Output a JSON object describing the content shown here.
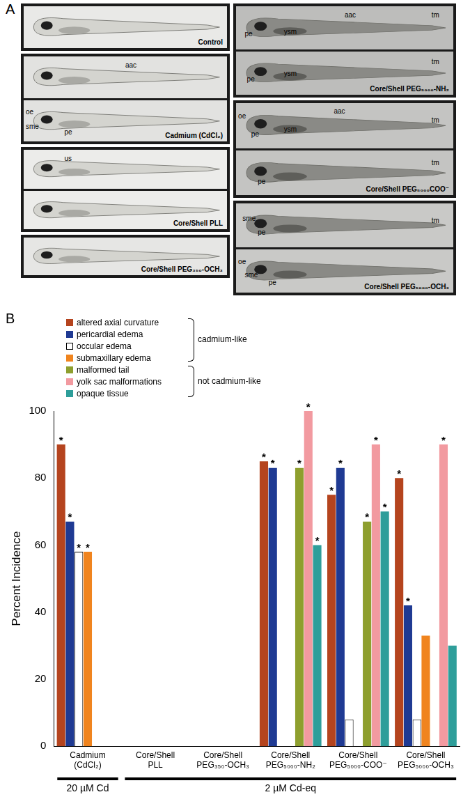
{
  "panel_a": {
    "label": "A",
    "panels": [
      {
        "label": "Control",
        "images": [
          []
        ]
      },
      {
        "label": "Cadmium (CdCl₂)",
        "images": [
          [
            "aac"
          ],
          [
            "oe",
            "sme",
            "pe"
          ]
        ]
      },
      {
        "label": "Core/Shell PLL",
        "images": [
          [
            "us"
          ],
          []
        ]
      },
      {
        "label": "Core/Shell PEG₃₅₀-OCH₃",
        "images": [
          []
        ]
      },
      {
        "label": "Core/Shell PEG₅₀₀₀-NH₂",
        "images": [
          [
            "pe",
            "aac",
            "ysm",
            "tm"
          ],
          [
            "tm",
            "pe",
            "ysm"
          ]
        ]
      },
      {
        "label": "Core/Shell PEG₅₀₀₀COO⁻",
        "images": [
          [
            "oe",
            "aac",
            "pe",
            "ysm",
            "tm"
          ],
          [
            "tm",
            "pe"
          ]
        ]
      },
      {
        "label": "Core/Shell PEG₅₀₀₀-OCH₃",
        "images": [
          [
            "sme",
            "pe",
            "tm"
          ],
          [
            "oe",
            "sme",
            "pe"
          ]
        ]
      }
    ]
  },
  "chart_data": {
    "type": "bar",
    "panel_label": "B",
    "y_label": "Percent Incidence",
    "categories": [
      [
        "Cadmium",
        "(CdCl₂)"
      ],
      [
        "Core/Shell",
        "PLL"
      ],
      [
        "Core/Shell",
        "PEG₃₅₀-OCH₃"
      ],
      [
        "Core/Shell",
        "PEG₅₀₀₀-NH₂"
      ],
      [
        "Core/Shell",
        "PEG₅₀₀₀-COO⁻"
      ],
      [
        "Core/Shell",
        "PEG₅₀₀₀-OCH₃"
      ]
    ],
    "series": [
      {
        "name": "altered axial curvature",
        "color": "#b5441e",
        "values": [
          90,
          0,
          0,
          85,
          75,
          80
        ],
        "significance": [
          "*",
          null,
          null,
          "*",
          "*",
          "*"
        ]
      },
      {
        "name": "pericardial edema",
        "color": "#1f3a93",
        "values": [
          67,
          0,
          0,
          83,
          83,
          42
        ],
        "significance": [
          "*",
          null,
          null,
          "*",
          "*",
          "*"
        ]
      },
      {
        "name": "occular edema",
        "color": "#ffffff",
        "values": [
          58,
          0,
          0,
          0,
          8,
          8
        ],
        "significance": [
          "*",
          null,
          null,
          null,
          null,
          null
        ]
      },
      {
        "name": "submaxillary edema",
        "color": "#f0841e",
        "values": [
          58,
          0,
          0,
          0,
          0,
          33
        ],
        "significance": [
          "*",
          null,
          null,
          null,
          null,
          null
        ]
      },
      {
        "name": "malformed tail",
        "color": "#8e9f2e",
        "values": [
          0,
          0,
          0,
          83,
          67,
          0
        ],
        "significance": [
          null,
          null,
          null,
          "*",
          "*",
          null
        ]
      },
      {
        "name": "yolk sac malformations",
        "color": "#f29aa0",
        "values": [
          0,
          0,
          0,
          100,
          90,
          90
        ],
        "significance": [
          null,
          null,
          null,
          "*",
          "*",
          "*"
        ]
      },
      {
        "name": "opaque tissue",
        "color": "#2e9e9a",
        "values": [
          0,
          0,
          0,
          60,
          70,
          30
        ],
        "significance": [
          null,
          null,
          null,
          "*",
          "*",
          null
        ]
      }
    ],
    "legend_groups": [
      {
        "label": "cadmium-like",
        "series": [
          "altered axial curvature",
          "pericardial edema",
          "occular edema",
          "submaxillary edema"
        ]
      },
      {
        "label": "not cadmium-like",
        "series": [
          "malformed tail",
          "yolk sac malformations",
          "opaque tissue"
        ]
      }
    ],
    "bottom_groups": [
      {
        "label": "20 µM Cd",
        "span": 1
      },
      {
        "label": "2 µM Cd-eq",
        "span": 5
      }
    ],
    "ylim": [
      0,
      100
    ],
    "yticks": [
      0,
      20,
      40,
      60,
      80,
      100
    ],
    "grid": false,
    "legend": "top-left"
  }
}
